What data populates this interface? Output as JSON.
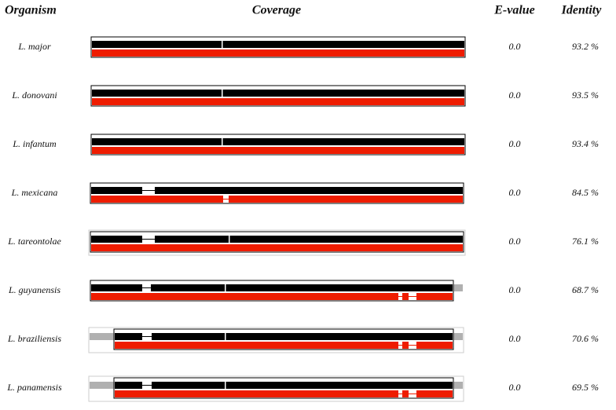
{
  "header": {
    "organism": "Organism",
    "coverage": "Coverage",
    "evalue": "E-value",
    "identity": "Identity"
  },
  "rows": [
    {
      "organism": "L. major",
      "evalue": "0.0",
      "identity": "93.2 %"
    },
    {
      "organism": "L. donovani",
      "evalue": "0.0",
      "identity": "93.5 %"
    },
    {
      "organism": "L. infantum",
      "evalue": "0.0",
      "identity": "93.4 %"
    },
    {
      "organism": "L. mexicana",
      "evalue": "0.0",
      "identity": "84.5 %"
    },
    {
      "organism": "L. tareontolae",
      "evalue": "0.0",
      "identity": "76.1 %"
    },
    {
      "organism": "L. guyanensis",
      "evalue": "0.0",
      "identity": "68.7 %"
    },
    {
      "organism": "L. braziliensis",
      "evalue": "0.0",
      "identity": "70.6 %"
    },
    {
      "organism": "L. panamensis",
      "evalue": "0.0",
      "identity": "69.5 %"
    }
  ]
}
